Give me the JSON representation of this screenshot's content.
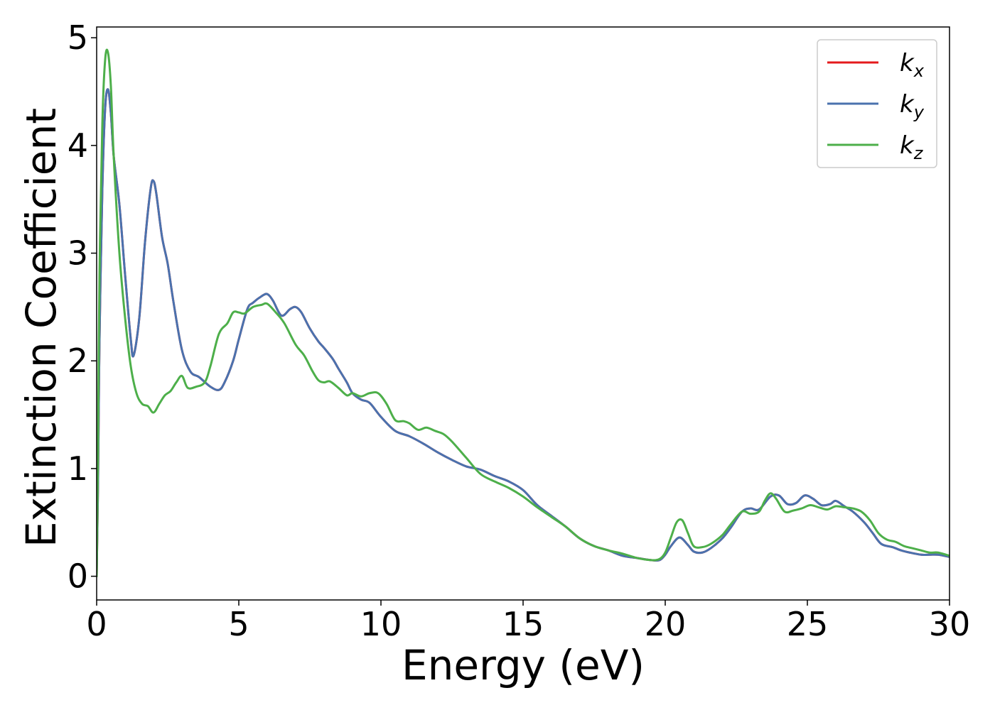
{
  "chart_data": {
    "type": "line",
    "title": "",
    "xlabel": "Energy (eV)",
    "ylabel": "Extinction Coefficient",
    "xlim": [
      0,
      30
    ],
    "ylim": [
      -0.22,
      5.1
    ],
    "xticks": [
      0,
      5,
      10,
      15,
      20,
      25,
      30
    ],
    "yticks": [
      0,
      1,
      2,
      3,
      4,
      5
    ],
    "grid": false,
    "legend_position": "top-right",
    "series": [
      {
        "name": "k",
        "subscript": "x",
        "color": "#e41a1c",
        "x": [
          0,
          0.05,
          0.1,
          0.2,
          0.3,
          0.4,
          0.5,
          0.6,
          0.8,
          1.0,
          1.2,
          1.3,
          1.5,
          1.7,
          1.9,
          2.0,
          2.1,
          2.3,
          2.5,
          2.7,
          3.0,
          3.3,
          3.6,
          4.0,
          4.3,
          4.5,
          4.8,
          5.0,
          5.3,
          5.5,
          5.8,
          6.0,
          6.2,
          6.5,
          6.8,
          7.0,
          7.2,
          7.5,
          7.8,
          8.0,
          8.3,
          8.5,
          8.8,
          9.0,
          9.3,
          9.6,
          10.0,
          10.5,
          11.0,
          11.5,
          12.0,
          12.5,
          13.0,
          13.5,
          14.0,
          14.5,
          15.0,
          15.5,
          16.0,
          16.5,
          17.0,
          17.5,
          18.0,
          18.5,
          19.0,
          19.5,
          19.8,
          20.0,
          20.2,
          20.5,
          20.8,
          21.0,
          21.3,
          21.6,
          22.0,
          22.3,
          22.7,
          23.0,
          23.3,
          23.7,
          24.0,
          24.3,
          24.6,
          24.9,
          25.2,
          25.5,
          25.8,
          26.0,
          26.3,
          26.6,
          27.0,
          27.3,
          27.6,
          28.0,
          28.3,
          28.6,
          29.0,
          29.3,
          29.6,
          30.0
        ],
        "y": [
          0.0,
          0.9,
          2.2,
          3.6,
          4.35,
          4.52,
          4.3,
          3.9,
          3.45,
          2.8,
          2.2,
          2.05,
          2.4,
          3.1,
          3.6,
          3.67,
          3.55,
          3.15,
          2.9,
          2.55,
          2.1,
          1.9,
          1.85,
          1.76,
          1.73,
          1.8,
          2.0,
          2.2,
          2.48,
          2.54,
          2.6,
          2.62,
          2.56,
          2.42,
          2.48,
          2.5,
          2.45,
          2.3,
          2.18,
          2.12,
          2.02,
          1.93,
          1.8,
          1.7,
          1.64,
          1.61,
          1.48,
          1.35,
          1.3,
          1.23,
          1.15,
          1.08,
          1.02,
          0.99,
          0.93,
          0.88,
          0.8,
          0.66,
          0.56,
          0.46,
          0.35,
          0.28,
          0.24,
          0.19,
          0.17,
          0.15,
          0.15,
          0.2,
          0.28,
          0.36,
          0.29,
          0.23,
          0.22,
          0.26,
          0.35,
          0.45,
          0.6,
          0.63,
          0.62,
          0.74,
          0.75,
          0.67,
          0.68,
          0.75,
          0.72,
          0.66,
          0.67,
          0.7,
          0.65,
          0.6,
          0.5,
          0.4,
          0.3,
          0.27,
          0.24,
          0.22,
          0.2,
          0.2,
          0.2,
          0.18
        ]
      },
      {
        "name": "k",
        "subscript": "y",
        "color": "#4a72ae",
        "x": [
          0,
          0.05,
          0.1,
          0.2,
          0.3,
          0.4,
          0.5,
          0.6,
          0.8,
          1.0,
          1.2,
          1.3,
          1.5,
          1.7,
          1.9,
          2.0,
          2.1,
          2.3,
          2.5,
          2.7,
          3.0,
          3.3,
          3.6,
          4.0,
          4.3,
          4.5,
          4.8,
          5.0,
          5.3,
          5.5,
          5.8,
          6.0,
          6.2,
          6.5,
          6.8,
          7.0,
          7.2,
          7.5,
          7.8,
          8.0,
          8.3,
          8.5,
          8.8,
          9.0,
          9.3,
          9.6,
          10.0,
          10.5,
          11.0,
          11.5,
          12.0,
          12.5,
          13.0,
          13.5,
          14.0,
          14.5,
          15.0,
          15.5,
          16.0,
          16.5,
          17.0,
          17.5,
          18.0,
          18.5,
          19.0,
          19.5,
          19.8,
          20.0,
          20.2,
          20.5,
          20.8,
          21.0,
          21.3,
          21.6,
          22.0,
          22.3,
          22.7,
          23.0,
          23.3,
          23.7,
          24.0,
          24.3,
          24.6,
          24.9,
          25.2,
          25.5,
          25.8,
          26.0,
          26.3,
          26.6,
          27.0,
          27.3,
          27.6,
          28.0,
          28.3,
          28.6,
          29.0,
          29.3,
          29.6,
          30.0
        ],
        "y": [
          0.0,
          0.9,
          2.2,
          3.6,
          4.35,
          4.52,
          4.3,
          3.9,
          3.45,
          2.8,
          2.2,
          2.05,
          2.4,
          3.1,
          3.6,
          3.67,
          3.55,
          3.15,
          2.9,
          2.55,
          2.1,
          1.9,
          1.85,
          1.76,
          1.73,
          1.8,
          2.0,
          2.2,
          2.48,
          2.54,
          2.6,
          2.62,
          2.56,
          2.42,
          2.48,
          2.5,
          2.45,
          2.3,
          2.18,
          2.12,
          2.02,
          1.93,
          1.8,
          1.7,
          1.64,
          1.61,
          1.48,
          1.35,
          1.3,
          1.23,
          1.15,
          1.08,
          1.02,
          0.99,
          0.93,
          0.88,
          0.8,
          0.66,
          0.56,
          0.46,
          0.35,
          0.28,
          0.24,
          0.19,
          0.17,
          0.15,
          0.15,
          0.2,
          0.28,
          0.36,
          0.29,
          0.23,
          0.22,
          0.26,
          0.35,
          0.45,
          0.6,
          0.63,
          0.62,
          0.74,
          0.75,
          0.67,
          0.68,
          0.75,
          0.72,
          0.66,
          0.67,
          0.7,
          0.65,
          0.6,
          0.5,
          0.4,
          0.3,
          0.27,
          0.24,
          0.22,
          0.2,
          0.2,
          0.2,
          0.18
        ]
      },
      {
        "name": "k",
        "subscript": "z",
        "color": "#4daf4a",
        "x": [
          0,
          0.05,
          0.1,
          0.2,
          0.3,
          0.4,
          0.5,
          0.6,
          0.8,
          1.0,
          1.2,
          1.4,
          1.6,
          1.8,
          2.0,
          2.2,
          2.4,
          2.6,
          2.8,
          3.0,
          3.2,
          3.5,
          3.8,
          4.0,
          4.3,
          4.6,
          4.8,
          5.0,
          5.2,
          5.5,
          5.8,
          6.0,
          6.3,
          6.6,
          7.0,
          7.3,
          7.6,
          7.8,
          8.0,
          8.2,
          8.5,
          8.8,
          9.0,
          9.3,
          9.6,
          9.9,
          10.2,
          10.5,
          10.8,
          11.0,
          11.3,
          11.6,
          11.9,
          12.2,
          12.5,
          13.0,
          13.5,
          14.0,
          14.5,
          15.0,
          15.5,
          16.0,
          16.5,
          17.0,
          17.5,
          18.0,
          18.5,
          19.0,
          19.5,
          19.8,
          20.0,
          20.2,
          20.4,
          20.6,
          20.8,
          21.0,
          21.3,
          21.6,
          22.0,
          22.3,
          22.7,
          23.0,
          23.3,
          23.5,
          23.7,
          23.9,
          24.2,
          24.5,
          24.8,
          25.1,
          25.4,
          25.7,
          26.0,
          26.3,
          26.6,
          26.9,
          27.2,
          27.5,
          27.8,
          28.1,
          28.4,
          28.7,
          29.0,
          29.3,
          29.6,
          30.0
        ],
        "y": [
          0.0,
          1.2,
          2.8,
          4.2,
          4.8,
          4.86,
          4.55,
          3.9,
          3.0,
          2.4,
          1.95,
          1.7,
          1.6,
          1.58,
          1.52,
          1.6,
          1.68,
          1.72,
          1.8,
          1.86,
          1.75,
          1.76,
          1.8,
          1.95,
          2.25,
          2.35,
          2.45,
          2.45,
          2.44,
          2.5,
          2.52,
          2.53,
          2.45,
          2.35,
          2.15,
          2.05,
          1.9,
          1.82,
          1.8,
          1.81,
          1.75,
          1.68,
          1.7,
          1.67,
          1.7,
          1.7,
          1.6,
          1.45,
          1.44,
          1.42,
          1.36,
          1.38,
          1.35,
          1.32,
          1.25,
          1.1,
          0.95,
          0.88,
          0.82,
          0.74,
          0.64,
          0.55,
          0.46,
          0.35,
          0.28,
          0.24,
          0.21,
          0.17,
          0.15,
          0.16,
          0.22,
          0.36,
          0.5,
          0.52,
          0.4,
          0.28,
          0.27,
          0.3,
          0.38,
          0.48,
          0.6,
          0.58,
          0.6,
          0.7,
          0.77,
          0.72,
          0.6,
          0.61,
          0.63,
          0.66,
          0.64,
          0.62,
          0.65,
          0.64,
          0.63,
          0.6,
          0.52,
          0.4,
          0.34,
          0.32,
          0.28,
          0.26,
          0.24,
          0.22,
          0.22,
          0.19
        ]
      }
    ]
  }
}
